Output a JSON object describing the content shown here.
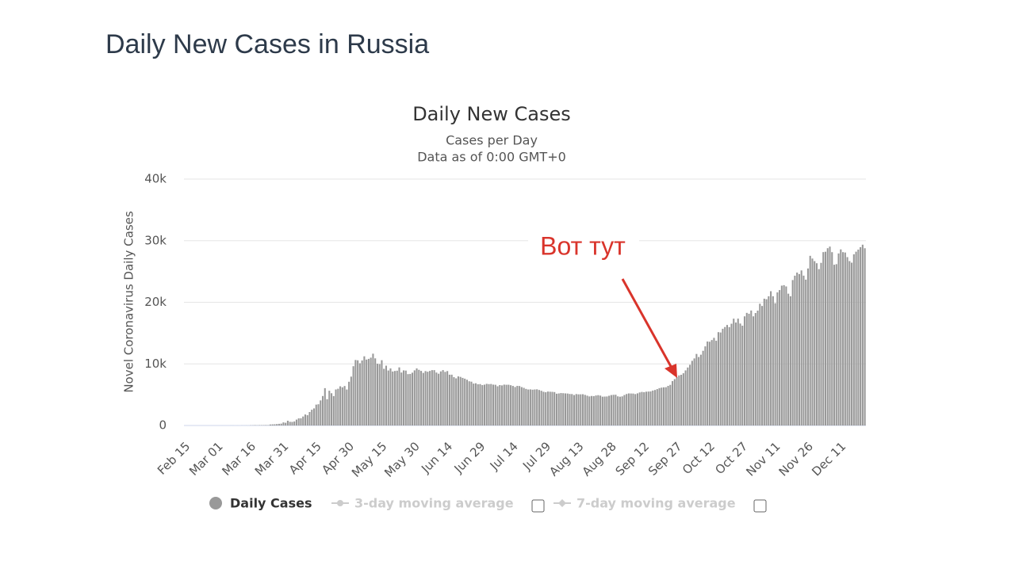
{
  "page_title": "Daily New Cases in Russia",
  "chart_data": {
    "type": "bar",
    "title": "Daily New Cases",
    "subtitle": [
      "Cases per Day",
      "Data as of 0:00 GMT+0"
    ],
    "y_axis_label": "Novel Coronavirus Daily Cases",
    "ylim": [
      0,
      40000
    ],
    "yticks": [
      0,
      {
        "value": 10000,
        "label": "10k"
      },
      {
        "value": 20000,
        "label": "20k"
      },
      {
        "value": 30000,
        "label": "30k"
      },
      {
        "value": 40000,
        "label": "40k"
      }
    ],
    "grid": true,
    "categories": [
      "Feb 15",
      null,
      null,
      null,
      null,
      null,
      null,
      null,
      null,
      null,
      null,
      null,
      null,
      null,
      null,
      "Mar 01",
      null,
      null,
      null,
      null,
      null,
      null,
      null,
      null,
      null,
      null,
      null,
      null,
      null,
      null,
      "Mar 16",
      null,
      null,
      null,
      null,
      null,
      null,
      null,
      null,
      null,
      null,
      null,
      null,
      null,
      null,
      "Mar 31",
      null,
      null,
      null,
      null,
      null,
      null,
      null,
      null,
      null,
      null,
      null,
      null,
      null,
      null,
      "Apr 15",
      null,
      null,
      null,
      null,
      null,
      null,
      null,
      null,
      null,
      null,
      null,
      null,
      null,
      null,
      "Apr 30",
      null,
      null,
      null,
      null,
      null,
      null,
      null,
      null,
      null,
      null,
      null,
      null,
      null,
      null,
      "May 15",
      null,
      null,
      null,
      null,
      null,
      null,
      null,
      null,
      null,
      null,
      null,
      null,
      null,
      null,
      "May 30",
      null,
      null,
      null,
      null,
      null,
      null,
      null,
      null,
      null,
      null,
      null,
      null,
      null,
      null,
      "Jun 14",
      null,
      null,
      null,
      null,
      null,
      null,
      null,
      null,
      null,
      null,
      null,
      null,
      null,
      null,
      "Jun 29",
      null,
      null,
      null,
      null,
      null,
      null,
      null,
      null,
      null,
      null,
      null,
      null,
      null,
      null,
      "Jul 14",
      null,
      null,
      null,
      null,
      null,
      null,
      null,
      null,
      null,
      null,
      null,
      null,
      null,
      null,
      "Jul 29",
      null,
      null,
      null,
      null,
      null,
      null,
      null,
      null,
      null,
      null,
      null,
      null,
      null,
      null,
      "Aug 13",
      null,
      null,
      null,
      null,
      null,
      null,
      null,
      null,
      null,
      null,
      null,
      null,
      null,
      null,
      "Aug 28",
      null,
      null,
      null,
      null,
      null,
      null,
      null,
      null,
      null,
      null,
      null,
      null,
      null,
      null,
      "Sep 12",
      null,
      null,
      null,
      null,
      null,
      null,
      null,
      null,
      null,
      null,
      null,
      null,
      null,
      null,
      "Sep 27",
      null,
      null,
      null,
      null,
      null,
      null,
      null,
      null,
      null,
      null,
      null,
      null,
      null,
      null,
      "Oct 12",
      null,
      null,
      null,
      null,
      null,
      null,
      null,
      null,
      null,
      null,
      null,
      null,
      null,
      null,
      "Oct 27",
      null,
      null,
      null,
      null,
      null,
      null,
      null,
      null,
      null,
      null,
      null,
      null,
      null,
      null,
      "Nov 11",
      null,
      null,
      null,
      null,
      null,
      null,
      null,
      null,
      null,
      null,
      null,
      null,
      null,
      null,
      "Nov 26",
      null,
      null,
      null,
      null,
      null,
      null,
      null,
      null,
      null,
      null,
      null,
      null,
      null,
      null,
      "Dec 11",
      null,
      null,
      null,
      null,
      null,
      null,
      null,
      null,
      null,
      null,
      null
    ],
    "series": [
      {
        "name": "Daily Cases",
        "color": "#999999",
        "values": [
          0,
          0,
          0,
          0,
          0,
          0,
          0,
          0,
          0,
          0,
          0,
          0,
          0,
          0,
          0,
          0,
          0,
          1,
          0,
          0,
          0,
          4,
          3,
          0,
          3,
          0,
          8,
          6,
          11,
          4,
          30,
          30,
          54,
          33,
          52,
          54,
          61,
          71,
          57,
          163,
          182,
          196,
          228,
          270,
          302,
          501,
          440,
          771,
          601,
          582,
          658,
          954,
          1154,
          1175,
          1459,
          1786,
          1667,
          2186,
          2558,
          2774,
          3388,
          3448,
          4070,
          4785,
          6060,
          4268,
          5642,
          5236,
          4774,
          5849,
          5966,
          6361,
          6198,
          6411,
          5841,
          7099,
          7933,
          9623,
          10633,
          10581,
          10102,
          10559,
          11231,
          10699,
          10817,
          11012,
          11656,
          10899,
          10028,
          9974,
          10598,
          9200,
          9709,
          8926,
          9263,
          8764,
          8849,
          8894,
          9434,
          8599,
          8946,
          8915,
          8338,
          8371,
          8572,
          8952,
          9268,
          9035,
          8863,
          8536,
          8831,
          8726,
          8855,
          8984,
          8985,
          8595,
          8404,
          8779,
          8987,
          8706,
          8835,
          8246,
          8248,
          7843,
          7652,
          7972,
          7889,
          7728,
          7600,
          7425,
          7176,
          7113,
          6800,
          6852,
          6693,
          6719,
          6556,
          6632,
          6760,
          6718,
          6736,
          6632,
          6611,
          6368,
          6562,
          6509,
          6635,
          6611,
          6615,
          6537,
          6422,
          6248,
          6428,
          6406,
          6234,
          6109,
          5940,
          5842,
          5862,
          5811,
          5848,
          5871,
          5765,
          5635,
          5475,
          5395,
          5509,
          5482,
          5462,
          5427,
          5159,
          5204,
          5267,
          5241,
          5212,
          5189,
          5118,
          5102,
          4945,
          5102,
          5057,
          5061,
          5076,
          4969,
          4839,
          4718,
          4790,
          4767,
          4870,
          4921,
          4852,
          4676,
          4696,
          4711,
          4829,
          4941,
          4980,
          4993,
          4729,
          4670,
          4729,
          4952,
          5110,
          5205,
          5195,
          5185,
          5099,
          5218,
          5363,
          5449,
          5406,
          5488,
          5509,
          5529,
          5670,
          5762,
          5905,
          6065,
          6148,
          6196,
          6215,
          6431,
          6595,
          7212,
          7523,
          7867,
          8135,
          8232,
          8481,
          8945,
          9412,
          9859,
          10499,
          10888,
          11615,
          11115,
          11493,
          12126,
          12846,
          13634,
          13592,
          13868,
          14231,
          13754,
          15150,
          15099,
          15700,
          15982,
          16319,
          15971,
          16521,
          17340,
          16710,
          17347,
          16550,
          16202,
          17717,
          18283,
          18140,
          18665,
          17717,
          18257,
          18648,
          19768,
          19404,
          20582,
          20498,
          20977,
          21798,
          20977,
          19851,
          21608,
          21983,
          22702,
          22778,
          22572,
          21396,
          20977,
          23610,
          24318,
          24822,
          24581,
          25173,
          24326,
          23675,
          25487,
          27543,
          27100,
          26683,
          26338,
          25383,
          26402,
          28145,
          28209,
          28782,
          29039,
          28137,
          26097,
          26190,
          27927,
          28585,
          28137,
          28080,
          27328,
          26689,
          26431,
          27787,
          28214,
          28552,
          28948,
          29350,
          28776
        ]
      }
    ],
    "inactive_legend": [
      "3-day moving average",
      "7-day moving average"
    ],
    "annotation": {
      "text": "Вот тут",
      "color": "#d9342b"
    }
  }
}
